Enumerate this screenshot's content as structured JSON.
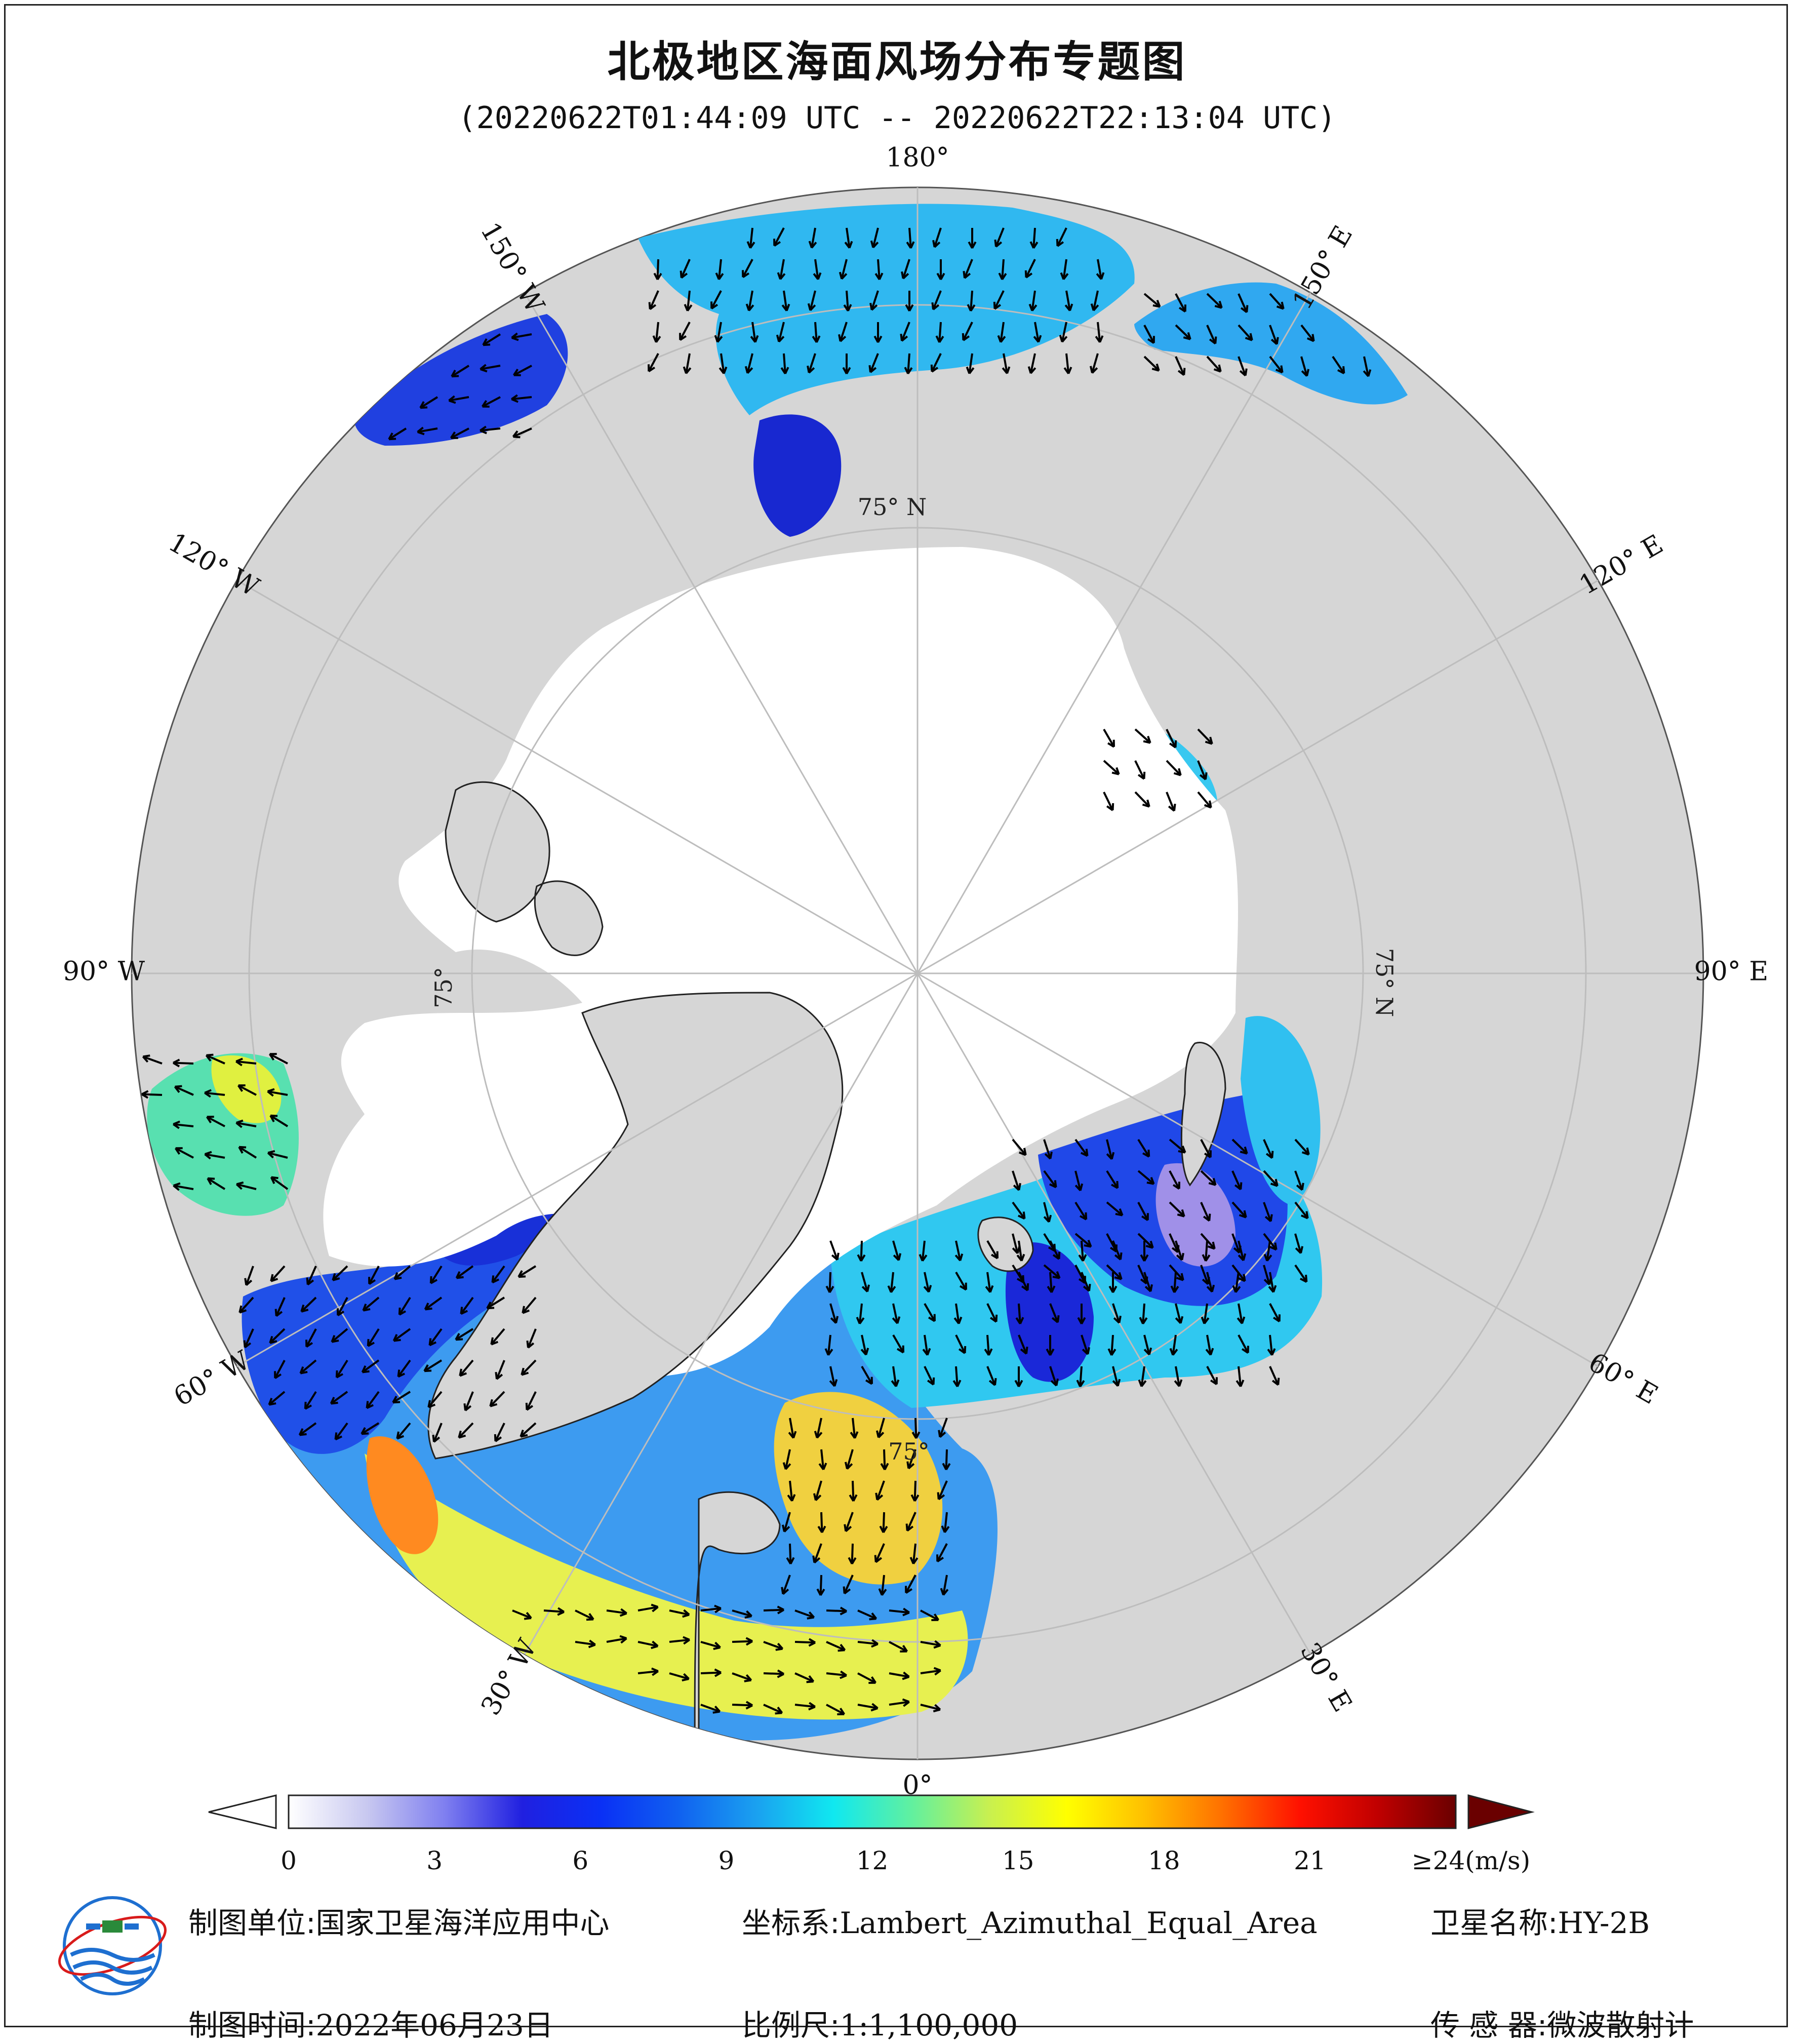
{
  "title": "北极地区海面风场分布专题图",
  "subtitle": "(20220622T01:44:09 UTC -- 20220622T22:13:04 UTC)",
  "map": {
    "projection": "Lambert_Azimuthal_Equal_Area",
    "lon_labels": [
      {
        "text": "180°",
        "lon": 180
      },
      {
        "text": "150° E",
        "lon": 150
      },
      {
        "text": "120° E",
        "lon": 120
      },
      {
        "text": "90° E",
        "lon": 90
      },
      {
        "text": "60° E",
        "lon": 60
      },
      {
        "text": "30° E",
        "lon": 30
      },
      {
        "text": "0°",
        "lon": 0
      },
      {
        "text": "30° W",
        "lon": -30
      },
      {
        "text": "60° W",
        "lon": -60
      },
      {
        "text": "90° W",
        "lon": -90
      },
      {
        "text": "120° W",
        "lon": -120
      },
      {
        "text": "150° W",
        "lon": -150
      }
    ],
    "lat_labels": [
      "75° N",
      "75° N",
      "75°",
      "75°"
    ],
    "colors": {
      "land": "#d6d6d6",
      "ice": "#ffffff",
      "ocean_no_data": "#ffffff",
      "grid": "#bdbdbd",
      "arrow": "#000000"
    }
  },
  "colorbar": {
    "unit_label": "≥24(m/s)",
    "min": 0,
    "max": 24,
    "ticks": [
      {
        "label": "0",
        "value": 0
      },
      {
        "label": "3",
        "value": 3
      },
      {
        "label": "6",
        "value": 6
      },
      {
        "label": "9",
        "value": 9
      },
      {
        "label": "12",
        "value": 12
      },
      {
        "label": "15",
        "value": 15
      },
      {
        "label": "18",
        "value": 18
      },
      {
        "label": "21",
        "value": 21
      }
    ],
    "stops": [
      "#ffffff",
      "#c8c8f0",
      "#8080f0",
      "#2020e0",
      "#0a30f5",
      "#1060f0",
      "#1aa0f0",
      "#10e8f0",
      "#60f0a0",
      "#c8f050",
      "#ffff00",
      "#ffc000",
      "#ff7000",
      "#ff1000",
      "#c00000",
      "#6a0000"
    ]
  },
  "footer": {
    "unit_label": "制图单位:",
    "unit_value": "国家卫星海洋应用中心",
    "coord_label": "坐标系:",
    "coord_value": "Lambert_Azimuthal_Equal_Area",
    "satellite_label": "卫星名称:",
    "satellite_value": "HY-2B",
    "date_label": "制图时间:",
    "date_value": "2022年06月23日",
    "scale_label": "比例尺:",
    "scale_value": "1:1,100,000",
    "sensor_label": "传 感 器:",
    "sensor_value": "微波散射计"
  }
}
